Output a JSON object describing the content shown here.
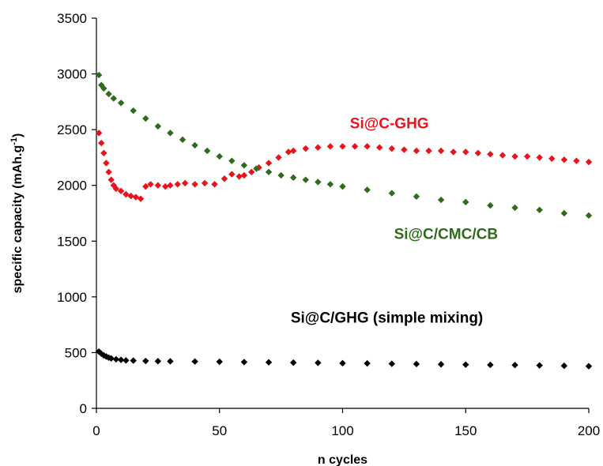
{
  "chart_data": {
    "type": "scatter",
    "title": "",
    "xlabel": "n cycles",
    "ylabel_main": "specific capacity (mAh.g",
    "ylabel_sup": "-1",
    "ylabel_close": ")",
    "xlim": [
      0,
      200
    ],
    "ylim": [
      0,
      3500
    ],
    "xticks": [
      "0",
      "50",
      "100",
      "150",
      "200"
    ],
    "yticks": [
      "0",
      "500",
      "1000",
      "1500",
      "2000",
      "2500",
      "3000",
      "3500"
    ],
    "grid": false,
    "legend": "inline labels",
    "marker": "diamond",
    "series": [
      {
        "name": "Si@C-GHG",
        "color": "#e8141b",
        "x": [
          1,
          2,
          3,
          4,
          5,
          6,
          7,
          8,
          10,
          12,
          14,
          16,
          18,
          20,
          22,
          25,
          28,
          30,
          33,
          36,
          40,
          44,
          48,
          52,
          55,
          58,
          60,
          63,
          66,
          70,
          74,
          78,
          80,
          85,
          90,
          95,
          100,
          105,
          110,
          115,
          120,
          125,
          130,
          135,
          140,
          145,
          150,
          155,
          160,
          165,
          170,
          175,
          180,
          185,
          190,
          195,
          200
        ],
        "y": [
          2470,
          2380,
          2290,
          2200,
          2120,
          2050,
          2000,
          1970,
          1950,
          1920,
          1905,
          1895,
          1880,
          1990,
          2010,
          2000,
          1990,
          2000,
          2010,
          2020,
          2010,
          2020,
          2010,
          2060,
          2100,
          2080,
          2090,
          2120,
          2160,
          2200,
          2250,
          2300,
          2310,
          2330,
          2340,
          2350,
          2350,
          2350,
          2350,
          2340,
          2330,
          2320,
          2310,
          2310,
          2310,
          2300,
          2300,
          2290,
          2280,
          2270,
          2260,
          2260,
          2250,
          2240,
          2230,
          2220,
          2210
        ]
      },
      {
        "name": "Si@C/CMC/CB",
        "color": "#2e6b1a",
        "x": [
          1,
          2,
          3,
          5,
          7,
          10,
          15,
          20,
          25,
          30,
          35,
          40,
          45,
          50,
          55,
          60,
          65,
          70,
          75,
          80,
          85,
          90,
          95,
          100,
          110,
          120,
          130,
          140,
          150,
          160,
          170,
          180,
          190,
          200
        ],
        "y": [
          2990,
          2900,
          2870,
          2820,
          2780,
          2740,
          2670,
          2600,
          2530,
          2470,
          2410,
          2360,
          2310,
          2260,
          2220,
          2180,
          2150,
          2120,
          2090,
          2070,
          2050,
          2030,
          2010,
          1990,
          1960,
          1930,
          1900,
          1870,
          1850,
          1820,
          1800,
          1780,
          1750,
          1730
        ]
      },
      {
        "name": "Si@C/GHG (simple mixing)",
        "color": "#000000",
        "x": [
          1,
          2,
          3,
          4,
          5,
          6,
          8,
          10,
          12,
          15,
          20,
          25,
          30,
          40,
          50,
          60,
          70,
          80,
          90,
          100,
          110,
          120,
          130,
          140,
          150,
          160,
          170,
          180,
          190,
          200
        ],
        "y": [
          510,
          490,
          475,
          465,
          455,
          448,
          440,
          435,
          430,
          428,
          425,
          423,
          422,
          420,
          418,
          415,
          413,
          410,
          408,
          405,
          403,
          400,
          398,
          395,
          392,
          390,
          388,
          385,
          382,
          378
        ]
      }
    ],
    "annotations": [
      {
        "text": "Si@C-GHG",
        "color": "#e8141b",
        "x": 119,
        "y": 2510
      },
      {
        "text": "Si@C/CMC/CB",
        "color": "#2e6b1a",
        "x": 142,
        "y": 1520
      },
      {
        "text": "Si@C/GHG (simple mixing)",
        "color": "#000000",
        "x": 118,
        "y": 770
      }
    ]
  }
}
